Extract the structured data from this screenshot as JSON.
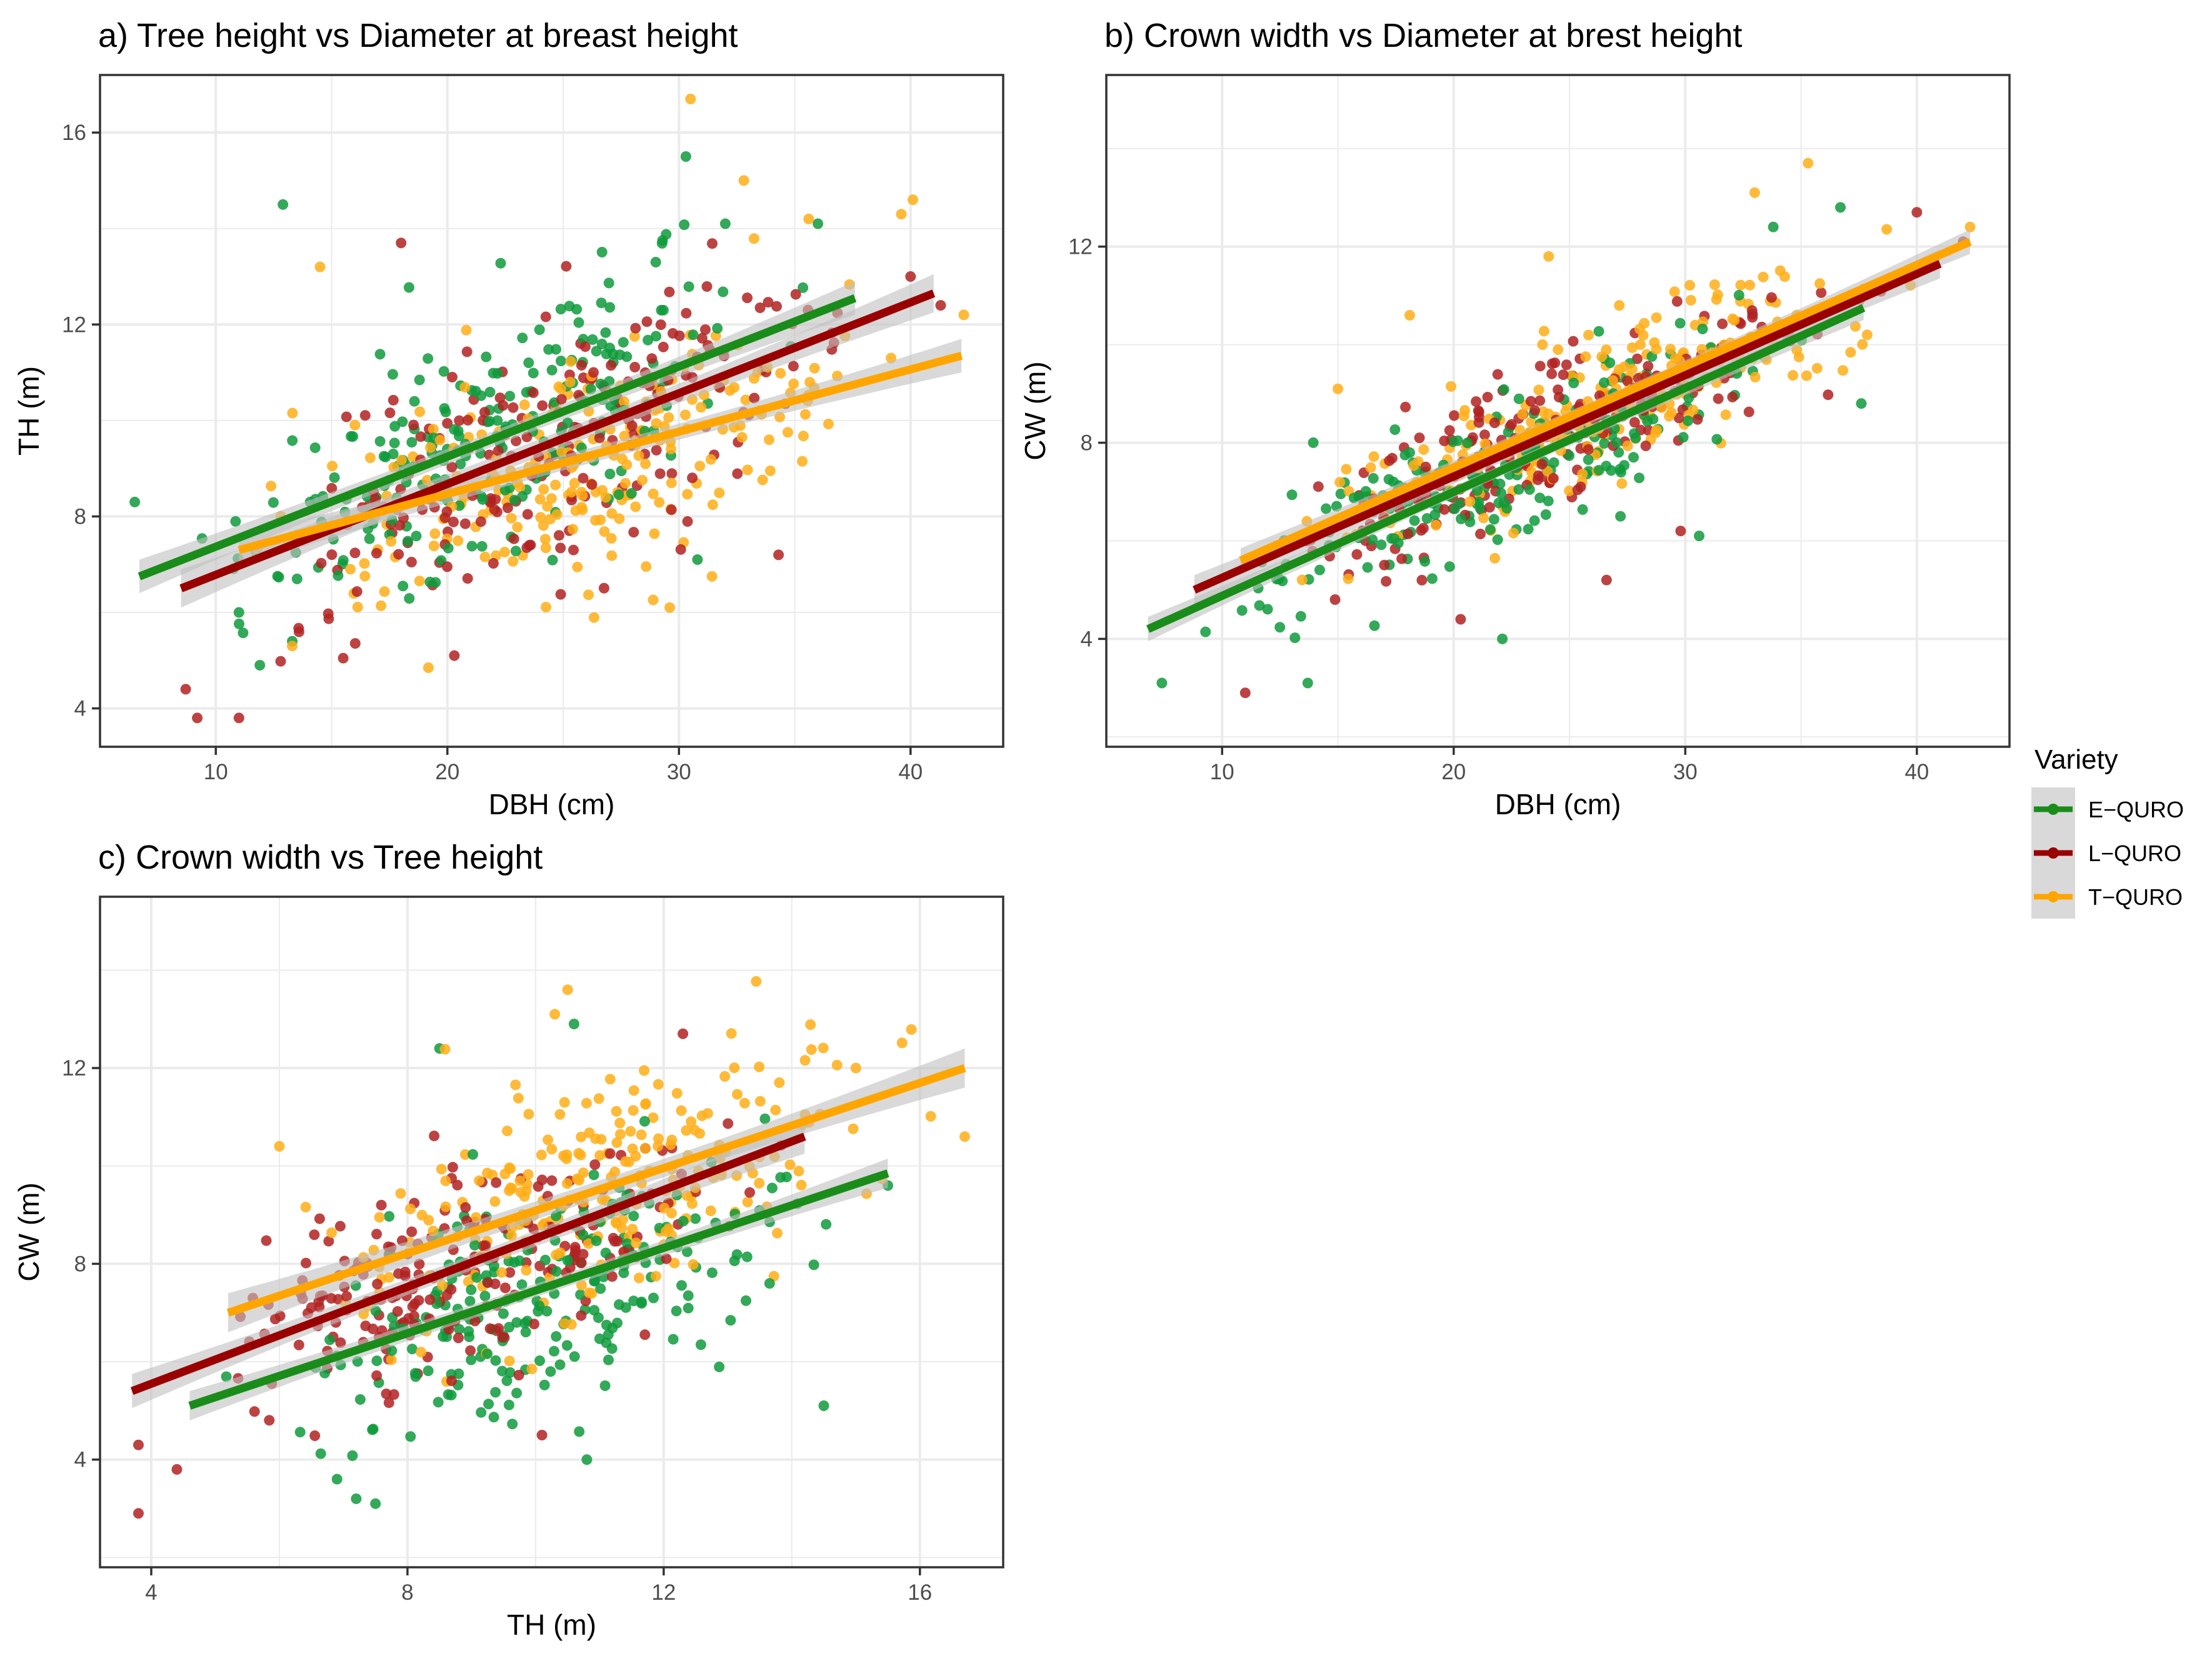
{
  "legend": {
    "title": "Variety",
    "entries": [
      {
        "name": "E−QURO",
        "color": "#1a8c1a"
      },
      {
        "name": "L−QURO",
        "color": "#990000"
      },
      {
        "name": "T−QURO",
        "color": "#ffa500"
      }
    ]
  },
  "colors": {
    "E": "#1a8c1a",
    "E_point": "#0f9a3c",
    "L": "#990000",
    "L_point": "#b22222",
    "T": "#ffa500",
    "T_point": "#ffae17",
    "ribbon": "#bfbfbf",
    "grid": "#ebebeb"
  },
  "chart_data": [
    {
      "id": "a",
      "type": "scatter",
      "title": "a) Tree height vs Diameter at breast height",
      "xlabel": "DBH (cm)",
      "ylabel": "TH (m)",
      "xlim": [
        5.0,
        44.0
      ],
      "ylim": [
        3.2,
        17.2
      ],
      "xticks": [
        10,
        20,
        30,
        40
      ],
      "yticks": [
        4,
        8,
        12,
        16
      ],
      "grid": true,
      "series": [
        {
          "name": "E−QURO",
          "color": "#1a8c1a",
          "fit": {
            "x": [
              6.7,
              37.6
            ],
            "y": [
              6.75,
              12.55
            ]
          },
          "band": 0.35,
          "n": 230,
          "xr": [
            6.7,
            37.6
          ],
          "sd": 1.15,
          "seed": 11,
          "points": [
            [
              12.9,
              14.5
            ],
            [
              30.3,
              15.5
            ],
            [
              6.5,
              8.3
            ],
            [
              11.9,
              4.9
            ],
            [
              11.0,
              6.0
            ],
            [
              32.0,
              14.1
            ],
            [
              36.0,
              14.1
            ],
            [
              29.0,
              13.3
            ],
            [
              30.8,
              7.1
            ]
          ]
        },
        {
          "name": "L−QURO",
          "color": "#990000",
          "fit": {
            "x": [
              8.5,
              41.0
            ],
            "y": [
              6.5,
              12.65
            ]
          },
          "band": 0.4,
          "n": 220,
          "xr": [
            8.5,
            41.0
          ],
          "sd": 1.3,
          "seed": 23,
          "points": [
            [
              8.7,
              4.4
            ],
            [
              9.2,
              3.8
            ],
            [
              11.0,
              3.8
            ],
            [
              18.0,
              13.7
            ],
            [
              20.3,
              5.1
            ],
            [
              34.3,
              7.2
            ],
            [
              41.3,
              12.4
            ],
            [
              40.0,
              13.0
            ]
          ]
        },
        {
          "name": "T−QURO",
          "color": "#ffa500",
          "fit": {
            "x": [
              11.0,
              42.2
            ],
            "y": [
              7.3,
              11.35
            ]
          },
          "band": 0.35,
          "n": 240,
          "xr": [
            10.2,
            42.2
          ],
          "sd": 1.2,
          "seed": 37,
          "points": [
            [
              30.5,
              16.7
            ],
            [
              40.1,
              14.6
            ],
            [
              39.6,
              14.3
            ],
            [
              32.8,
              15.0
            ],
            [
              14.5,
              13.2
            ],
            [
              42.3,
              12.2
            ],
            [
              29.6,
              6.1
            ],
            [
              13.3,
              5.3
            ],
            [
              35.6,
              14.2
            ]
          ]
        }
      ]
    },
    {
      "id": "b",
      "type": "scatter",
      "title": "b) Crown width vs Diameter at brest height",
      "xlabel": "DBH (cm)",
      "ylabel": "CW (m)",
      "xlim": [
        5.0,
        44.0
      ],
      "ylim": [
        1.8,
        15.5
      ],
      "xticks": [
        10,
        20,
        30,
        40
      ],
      "yticks": [
        4,
        8,
        12
      ],
      "grid": true,
      "series": [
        {
          "name": "E−QURO",
          "color": "#1a8c1a",
          "fit": {
            "x": [
              6.8,
              37.7
            ],
            "y": [
              4.2,
              10.75
            ]
          },
          "band": 0.25,
          "n": 230,
          "xr": [
            6.8,
            37.7
          ],
          "sd": 0.75,
          "seed": 51,
          "points": [
            [
              7.4,
              3.1
            ],
            [
              13.7,
              3.1
            ],
            [
              22.1,
              4.0
            ],
            [
              30.6,
              6.1
            ],
            [
              33.8,
              12.4
            ],
            [
              36.7,
              12.8
            ],
            [
              37.6,
              8.8
            ]
          ]
        },
        {
          "name": "L−QURO",
          "color": "#990000",
          "fit": {
            "x": [
              8.8,
              41.0
            ],
            "y": [
              5.0,
              11.65
            ]
          },
          "band": 0.3,
          "n": 220,
          "xr": [
            8.8,
            41.0
          ],
          "sd": 0.75,
          "seed": 63,
          "points": [
            [
              11.0,
              2.9
            ],
            [
              20.3,
              4.4
            ],
            [
              26.6,
              5.2
            ],
            [
              40.0,
              12.7
            ],
            [
              42.0,
              12.1
            ],
            [
              29.8,
              6.2
            ]
          ]
        },
        {
          "name": "T−QURO",
          "color": "#ffa500",
          "fit": {
            "x": [
              10.8,
              42.3
            ],
            "y": [
              5.6,
              12.1
            ]
          },
          "band": 0.25,
          "n": 240,
          "xr": [
            10.8,
            42.3
          ],
          "sd": 0.75,
          "seed": 77,
          "points": [
            [
              35.3,
              13.7
            ],
            [
              33.0,
              13.1
            ],
            [
              24.1,
              11.8
            ],
            [
              18.1,
              10.6
            ],
            [
              42.3,
              12.4
            ],
            [
              15.0,
              9.1
            ]
          ]
        }
      ]
    },
    {
      "id": "c",
      "type": "scatter",
      "title": "c) Crown width vs Tree height",
      "xlabel": "TH (m)",
      "ylabel": "CW (m)",
      "xlim": [
        3.2,
        17.3
      ],
      "ylim": [
        1.8,
        15.5
      ],
      "xticks": [
        4,
        8,
        12,
        16
      ],
      "yticks": [
        4,
        8,
        12
      ],
      "grid": true,
      "series": [
        {
          "name": "E−QURO",
          "color": "#1a8c1a",
          "fit": {
            "x": [
              4.6,
              15.5
            ],
            "y": [
              5.1,
              9.85
            ]
          },
          "band": 0.3,
          "n": 230,
          "xr": [
            4.8,
            15.5
          ],
          "sd": 1.05,
          "seed": 91,
          "points": [
            [
              7.5,
              3.1
            ],
            [
              7.2,
              3.2
            ],
            [
              6.9,
              3.6
            ],
            [
              10.8,
              4.0
            ],
            [
              14.5,
              5.1
            ],
            [
              15.5,
              9.6
            ],
            [
              8.5,
              12.4
            ],
            [
              10.6,
              12.9
            ]
          ]
        },
        {
          "name": "L−QURO",
          "color": "#990000",
          "fit": {
            "x": [
              3.7,
              14.2
            ],
            "y": [
              5.4,
              10.6
            ]
          },
          "band": 0.35,
          "n": 220,
          "xr": [
            3.8,
            14.2
          ],
          "sd": 1.0,
          "seed": 103,
          "points": [
            [
              3.8,
              2.9
            ],
            [
              3.8,
              4.3
            ],
            [
              4.4,
              3.8
            ],
            [
              12.3,
              12.7
            ],
            [
              10.1,
              4.5
            ]
          ]
        },
        {
          "name": "T−QURO",
          "color": "#ffa500",
          "fit": {
            "x": [
              5.2,
              16.7
            ],
            "y": [
              7.0,
              12.0
            ]
          },
          "band": 0.4,
          "n": 240,
          "xr": [
            5.2,
            16.7
          ],
          "sd": 1.1,
          "seed": 117,
          "points": [
            [
              10.5,
              13.6
            ],
            [
              10.3,
              13.1
            ],
            [
              16.7,
              10.6
            ],
            [
              15.0,
              12.0
            ],
            [
              6.0,
              10.4
            ]
          ]
        }
      ]
    }
  ]
}
